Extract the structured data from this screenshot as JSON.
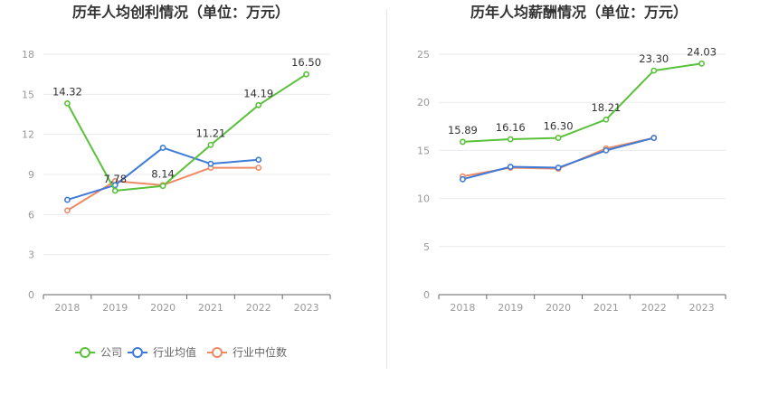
{
  "legend": {
    "company": "公司",
    "industry_avg": "行业均值",
    "industry_median": "行业中位数"
  },
  "colors": {
    "company": "#5ac13a",
    "industry_avg": "#3e7ad8",
    "industry_median": "#ee8a64"
  },
  "chart_data": [
    {
      "type": "line",
      "title": "历年人均创利情况（单位：万元）",
      "categories": [
        "2018",
        "2019",
        "2020",
        "2021",
        "2022",
        "2023"
      ],
      "ylim": [
        0,
        18
      ],
      "yticks": [
        0,
        3,
        6,
        9,
        12,
        15,
        18
      ],
      "series": [
        {
          "name": "公司",
          "key": "company",
          "values": [
            14.32,
            7.78,
            8.14,
            11.21,
            14.19,
            16.5
          ],
          "labels": [
            "14.32",
            "7.78",
            "8.14",
            "11.21",
            "14.19",
            "16.50"
          ]
        },
        {
          "name": "行业均值",
          "key": "industry_avg",
          "values": [
            7.1,
            8.2,
            11.0,
            9.8,
            10.1,
            null
          ]
        },
        {
          "name": "行业中位数",
          "key": "industry_median",
          "values": [
            6.3,
            8.5,
            8.2,
            9.5,
            9.5,
            null
          ]
        }
      ]
    },
    {
      "type": "line",
      "title": "历年人均薪酬情况（单位：万元）",
      "categories": [
        "2018",
        "2019",
        "2020",
        "2021",
        "2022",
        "2023"
      ],
      "ylim": [
        0,
        25
      ],
      "yticks": [
        0,
        5,
        10,
        15,
        20,
        25
      ],
      "series": [
        {
          "name": "公司",
          "key": "company",
          "values": [
            15.89,
            16.16,
            16.3,
            18.21,
            23.3,
            24.03
          ],
          "labels": [
            "15.89",
            "16.16",
            "16.30",
            "18.21",
            "23.30",
            "24.03"
          ]
        },
        {
          "name": "行业均值",
          "key": "industry_avg",
          "values": [
            12.0,
            13.3,
            13.2,
            15.0,
            16.3,
            null
          ]
        },
        {
          "name": "行业中位数",
          "key": "industry_median",
          "values": [
            12.3,
            13.2,
            13.1,
            15.2,
            16.3,
            null
          ]
        }
      ]
    }
  ]
}
